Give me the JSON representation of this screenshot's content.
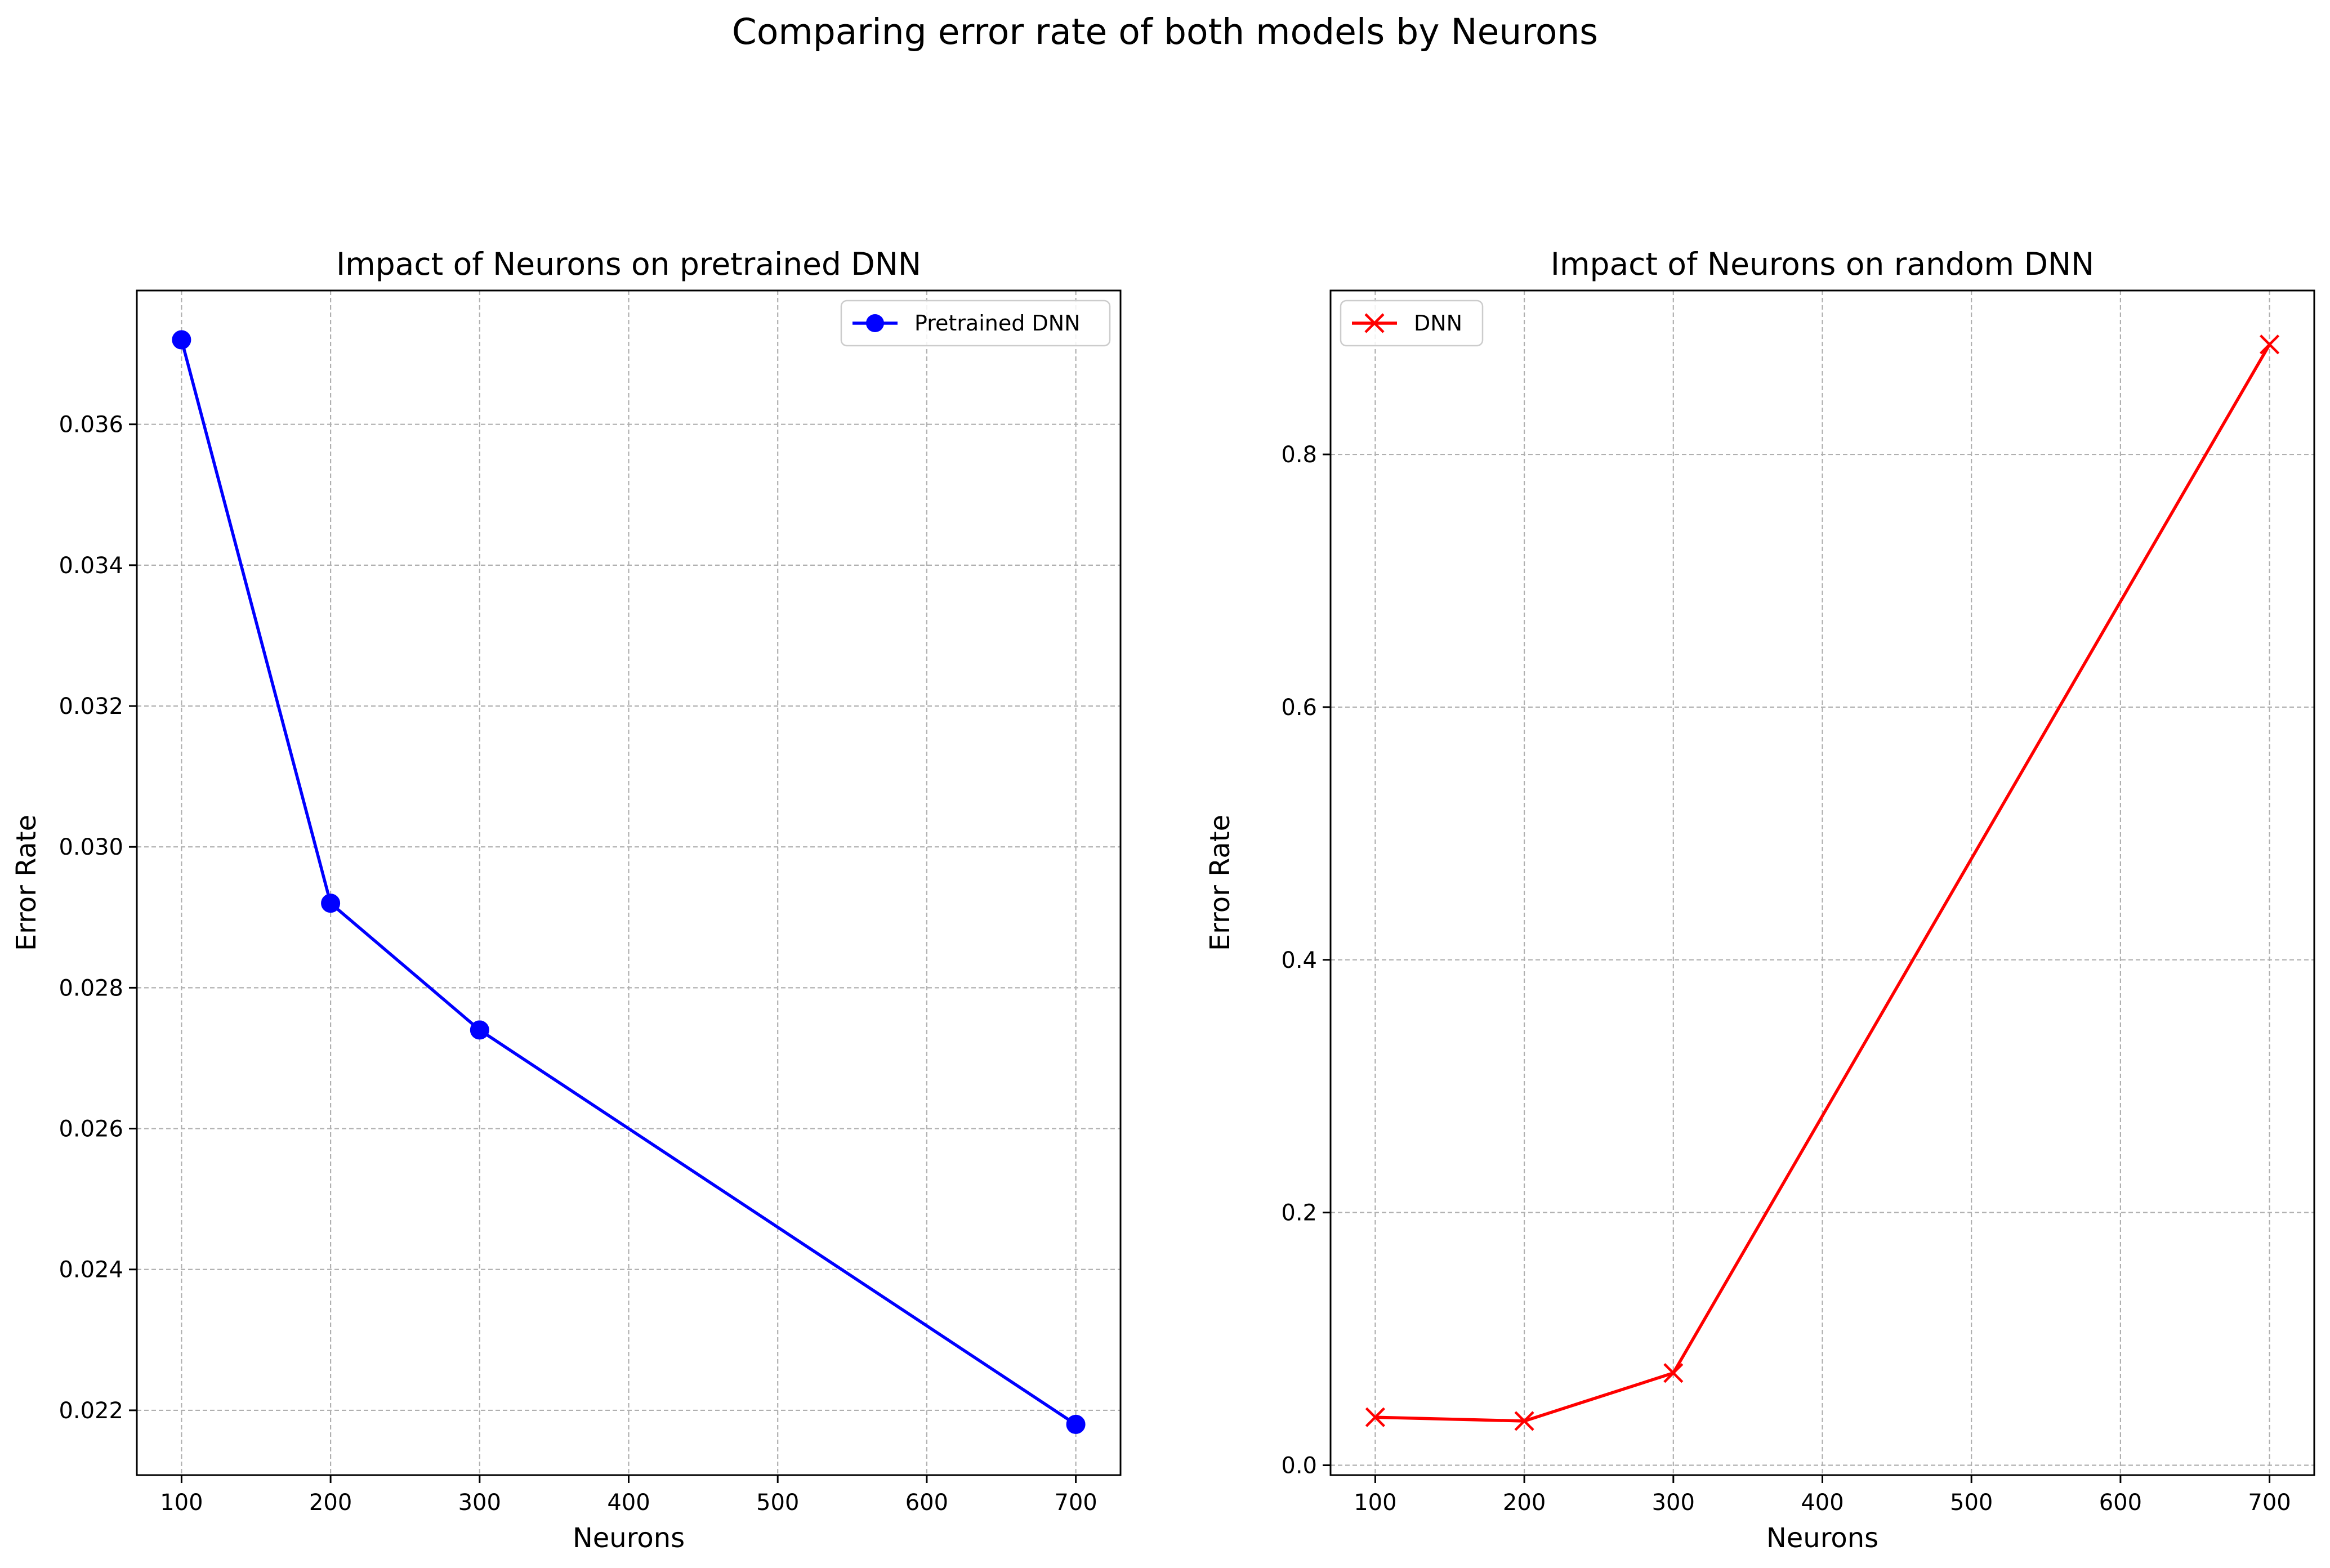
{
  "figure": {
    "suptitle": "Comparing error rate of both models by Neurons"
  },
  "chart_data": [
    {
      "type": "line",
      "title": "Impact of Neurons on pretrained DNN",
      "xlabel": "Neurons",
      "ylabel": "Error Rate",
      "xlim": [
        70,
        730
      ],
      "ylim": [
        0.02108,
        0.0379
      ],
      "xticks": [
        100,
        200,
        300,
        400,
        500,
        600,
        700
      ],
      "xtick_labels": [
        "100",
        "200",
        "300",
        "400",
        "500",
        "600",
        "700"
      ],
      "yticks": [
        0.022,
        0.024,
        0.026,
        0.028,
        0.03,
        0.032,
        0.034,
        0.036
      ],
      "ytick_labels": [
        "0.022",
        "0.024",
        "0.026",
        "0.028",
        "0.030",
        "0.032",
        "0.034",
        "0.036"
      ],
      "grid": true,
      "legend_position": "top-right",
      "series": [
        {
          "name": "Pretrained DNN",
          "marker": "circle",
          "color": "#0000ff",
          "x": [
            100,
            200,
            300,
            700
          ],
          "y": [
            0.0372,
            0.0292,
            0.0274,
            0.0218
          ]
        }
      ]
    },
    {
      "type": "line",
      "title": "Impact of Neurons on random DNN",
      "xlabel": "Neurons",
      "ylabel": "Error Rate",
      "xlim": [
        70,
        730
      ],
      "ylim": [
        -0.0078,
        0.9297
      ],
      "xticks": [
        100,
        200,
        300,
        400,
        500,
        600,
        700
      ],
      "xtick_labels": [
        "100",
        "200",
        "300",
        "400",
        "500",
        "600",
        "700"
      ],
      "yticks": [
        0.0,
        0.2,
        0.4,
        0.6,
        0.8
      ],
      "ytick_labels": [
        "0.0",
        "0.2",
        "0.4",
        "0.6",
        "0.8"
      ],
      "grid": true,
      "legend_position": "top-left",
      "series": [
        {
          "name": "DNN",
          "marker": "x",
          "color": "#ff0000",
          "x": [
            100,
            200,
            300,
            700
          ],
          "y": [
            0.038,
            0.035,
            0.073,
            0.887
          ]
        }
      ]
    }
  ]
}
